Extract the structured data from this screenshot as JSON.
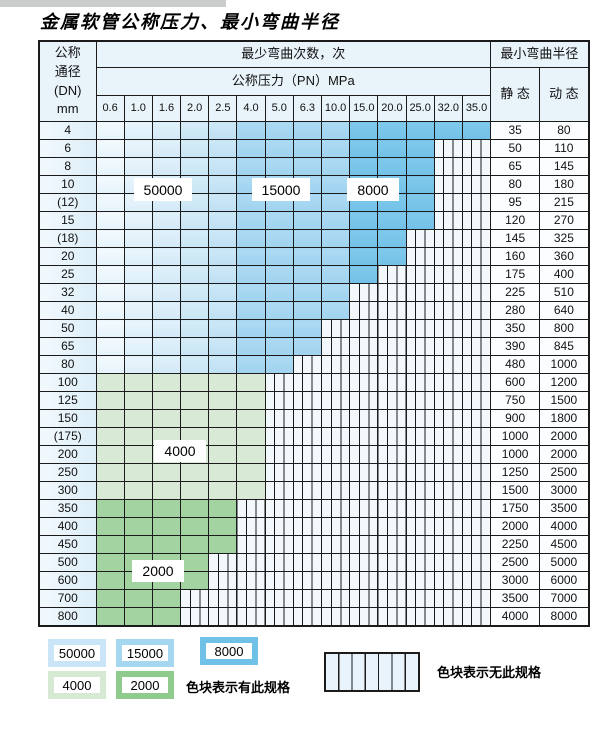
{
  "page": {
    "title": "金属软管公称压力、最小弯曲半径"
  },
  "table": {
    "corner": "公称\n通径\n(DN)\nmm",
    "bend_times_header": "最少弯曲次数，次",
    "pressure_header": "公称压力（PN）MPa",
    "radius_header": "最小弯曲半径",
    "static_header": "静 态",
    "dynamic_header": "动 态",
    "pressure_columns": [
      "0.6",
      "1.0",
      "1.6",
      "2.0",
      "2.5",
      "4.0",
      "5.0",
      "6.3",
      "10.0",
      "15.0",
      "20.0",
      "25.0",
      "32.0",
      "35.0"
    ],
    "rows": [
      {
        "dn": "4",
        "static": "35",
        "dynamic": "80",
        "colored": 14,
        "zone": "blue"
      },
      {
        "dn": "6",
        "static": "50",
        "dynamic": "110",
        "colored": 12,
        "zone": "blue"
      },
      {
        "dn": "8",
        "static": "65",
        "dynamic": "145",
        "colored": 12,
        "zone": "blue"
      },
      {
        "dn": "10",
        "static": "80",
        "dynamic": "180",
        "colored": 12,
        "zone": "blue"
      },
      {
        "dn": "(12)",
        "static": "95",
        "dynamic": "215",
        "colored": 12,
        "zone": "blue"
      },
      {
        "dn": "15",
        "static": "120",
        "dynamic": "270",
        "colored": 12,
        "zone": "blue"
      },
      {
        "dn": "(18)",
        "static": "145",
        "dynamic": "325",
        "colored": 11,
        "zone": "blue"
      },
      {
        "dn": "20",
        "static": "160",
        "dynamic": "360",
        "colored": 11,
        "zone": "blue"
      },
      {
        "dn": "25",
        "static": "175",
        "dynamic": "400",
        "colored": 10,
        "zone": "blue"
      },
      {
        "dn": "32",
        "static": "225",
        "dynamic": "510",
        "colored": 9,
        "zone": "blue"
      },
      {
        "dn": "40",
        "static": "280",
        "dynamic": "640",
        "colored": 9,
        "zone": "blue"
      },
      {
        "dn": "50",
        "static": "350",
        "dynamic": "800",
        "colored": 8,
        "zone": "blue"
      },
      {
        "dn": "65",
        "static": "390",
        "dynamic": "845",
        "colored": 8,
        "zone": "blue"
      },
      {
        "dn": "80",
        "static": "480",
        "dynamic": "1000",
        "colored": 7,
        "zone": "blue"
      },
      {
        "dn": "100",
        "static": "600",
        "dynamic": "1200",
        "colored": 6,
        "zone": "g4000"
      },
      {
        "dn": "125",
        "static": "750",
        "dynamic": "1500",
        "colored": 6,
        "zone": "g4000"
      },
      {
        "dn": "150",
        "static": "900",
        "dynamic": "1800",
        "colored": 6,
        "zone": "g4000"
      },
      {
        "dn": "(175)",
        "static": "1000",
        "dynamic": "2000",
        "colored": 6,
        "zone": "g4000"
      },
      {
        "dn": "200",
        "static": "1000",
        "dynamic": "2000",
        "colored": 6,
        "zone": "g4000"
      },
      {
        "dn": "250",
        "static": "1250",
        "dynamic": "2500",
        "colored": 6,
        "zone": "g4000"
      },
      {
        "dn": "300",
        "static": "1500",
        "dynamic": "3000",
        "colored": 6,
        "zone": "g4000"
      },
      {
        "dn": "350",
        "static": "1750",
        "dynamic": "3500",
        "colored": 5,
        "zone": "g2000"
      },
      {
        "dn": "400",
        "static": "2000",
        "dynamic": "4000",
        "colored": 5,
        "zone": "g2000"
      },
      {
        "dn": "450",
        "static": "2250",
        "dynamic": "4500",
        "colored": 5,
        "zone": "g2000"
      },
      {
        "dn": "500",
        "static": "2500",
        "dynamic": "5000",
        "colored": 4,
        "zone": "g2000"
      },
      {
        "dn": "600",
        "static": "3000",
        "dynamic": "6000",
        "colored": 4,
        "zone": "g2000"
      },
      {
        "dn": "700",
        "static": "3500",
        "dynamic": "7000",
        "colored": 3,
        "zone": "g2000"
      },
      {
        "dn": "800",
        "static": "4000",
        "dynamic": "8000",
        "colored": 3,
        "zone": "g2000"
      }
    ]
  },
  "region_labels": {
    "r50000": "50000",
    "r15000": "15000",
    "r8000": "8000",
    "r4000": "4000",
    "r2000": "2000"
  },
  "legend": {
    "items": [
      {
        "label": "50000",
        "color": "#c9e5f7"
      },
      {
        "label": "15000",
        "color": "#a5d7f1"
      },
      {
        "label": "8000",
        "color": "#6fc1e8"
      },
      {
        "label": "4000",
        "color": "#d6e9d2"
      },
      {
        "label": "2000",
        "color": "#8ecb8d"
      }
    ],
    "has_spec_text": "色块表示有此规格",
    "no_spec_text": "色块表示无此规格"
  },
  "colors": {
    "cycles_50000": "#d2e9f7",
    "cycles_15000": "#a6d8f2",
    "cycles_8000": "#79c5ea",
    "cycles_4000": "#d8e9d5",
    "cycles_2000": "#a3d3a0",
    "no_spec_bg": "#f2f8fc",
    "grid_line": "#1b1b1b"
  }
}
